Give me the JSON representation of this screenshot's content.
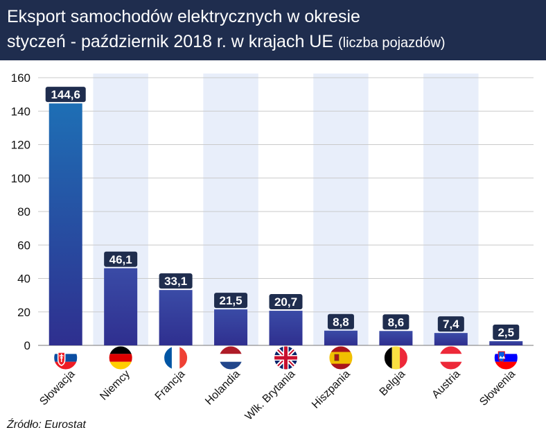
{
  "header": {
    "title_line1": "Eksport samochodów elektrycznych w okresie",
    "title_line2": "styczeń - październik 2018 r. w krajach UE",
    "title_unit": "(liczba pojazdów)"
  },
  "source": "Źródło: Eurostat",
  "colors": {
    "header_bg": "#1f2d4e",
    "stripe": "#e8eefa",
    "bar_top_first": "#1e6fb5",
    "bar_bottom": "#2f2f8f",
    "bar_top": "#3a4ba6",
    "label_bg": "#1f2d4e"
  },
  "chart_data": {
    "type": "bar",
    "title": "Eksport samochodów elektrycznych w okresie styczeń - październik 2018 r. w krajach UE (liczba pojazdów)",
    "categories": [
      "Słowacja",
      "Niemcy",
      "Francja",
      "Holandia",
      "Wlk. Brytania",
      "Hiszpania",
      "Belgia",
      "Austria",
      "Słowenia"
    ],
    "values": [
      144.6,
      46.1,
      33.1,
      21.5,
      20.7,
      8.8,
      8.6,
      7.4,
      2.5
    ],
    "value_labels": [
      "144,6",
      "46,1",
      "33,1",
      "21,5",
      "20,7",
      "8,8",
      "8,6",
      "7,4",
      "2,5"
    ],
    "flag_icons": [
      "flag-slovakia-icon",
      "flag-germany-icon",
      "flag-france-icon",
      "flag-netherlands-icon",
      "flag-uk-icon",
      "flag-spain-icon",
      "flag-belgium-icon",
      "flag-austria-icon",
      "flag-slovenia-icon"
    ],
    "ylim": [
      0,
      160
    ],
    "yticks": [
      "0",
      "20",
      "40",
      "60",
      "80",
      "100",
      "120",
      "140",
      "160"
    ],
    "xlabel": "",
    "ylabel": "",
    "grid": true
  }
}
